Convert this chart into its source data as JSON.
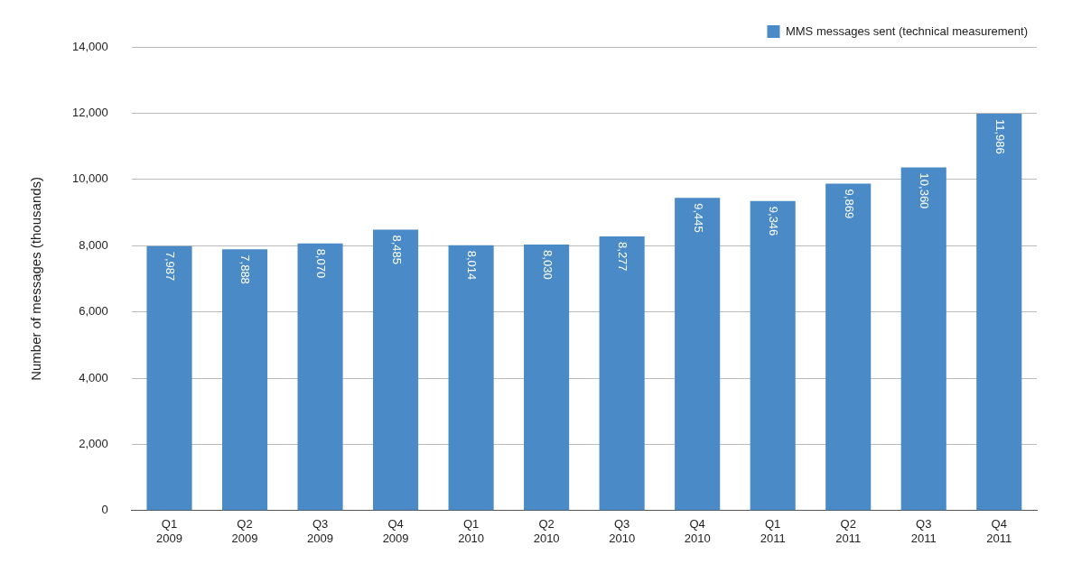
{
  "chart_data": {
    "type": "bar",
    "ylabel": "Number of messages (thousands)",
    "categories": [
      "Q1 2009",
      "Q2 2009",
      "Q3 2009",
      "Q4 2009",
      "Q1 2010",
      "Q2 2010",
      "Q3 2010",
      "Q4 2010",
      "Q1 2011",
      "Q2 2011",
      "Q3 2011",
      "Q4 2011"
    ],
    "series": [
      {
        "name": "MMS messages sent (technical measurement)",
        "color": "#4a8ac6",
        "values": [
          7987,
          7888,
          8070,
          8485,
          8014,
          8030,
          8277,
          9445,
          9346,
          9869,
          10360,
          11986
        ],
        "value_labels": [
          "7,987",
          "7,888",
          "8,070",
          "8,485",
          "8,014",
          "8,030",
          "8,277",
          "9,445",
          "9,346",
          "9,869",
          "10,360",
          "11,986"
        ]
      }
    ],
    "ylim": [
      0,
      14000
    ],
    "yticks": [
      {
        "value": 0,
        "label": "0"
      },
      {
        "value": 2000,
        "label": "2,000"
      },
      {
        "value": 4000,
        "label": "4,000"
      },
      {
        "value": 6000,
        "label": "6,000"
      },
      {
        "value": 8000,
        "label": "8,000"
      },
      {
        "value": 10000,
        "label": "10,000"
      },
      {
        "value": 12000,
        "label": "12,000"
      },
      {
        "value": 14000,
        "label": "14,000"
      }
    ],
    "grid": "y",
    "legend": "top right"
  }
}
